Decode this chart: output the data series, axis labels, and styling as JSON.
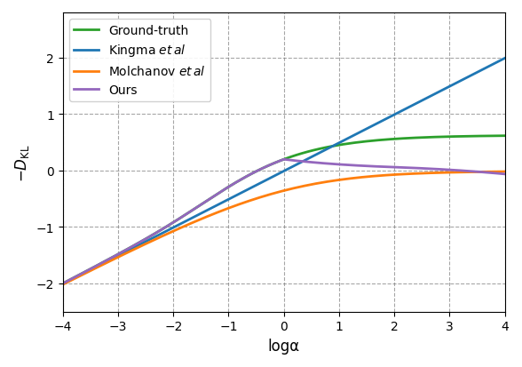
{
  "title": "",
  "xlabel": "logα",
  "ylabel": "$-D_{\\mathrm{KL}}$",
  "xlim": [
    -4,
    4
  ],
  "ylim": [
    -2.5,
    2.8
  ],
  "yticks": [
    -2,
    -1,
    0,
    1,
    2
  ],
  "xticks": [
    -4,
    -3,
    -2,
    -1,
    0,
    1,
    2,
    3,
    4
  ],
  "colors": {
    "ground_truth": "#2ca02c",
    "kingma": "#1f77b4",
    "molchanov": "#ff7f0e",
    "ours": "#9467bd"
  },
  "labels": {
    "ground_truth": "Ground-truth",
    "kingma": "Kingma $\\it{et\\,al}$",
    "molchanov": "Molchanov $\\it{et\\,al}$",
    "ours": "Ours"
  },
  "linewidth": 2.0,
  "figsize": [
    5.88,
    4.14
  ],
  "dpi": 100
}
